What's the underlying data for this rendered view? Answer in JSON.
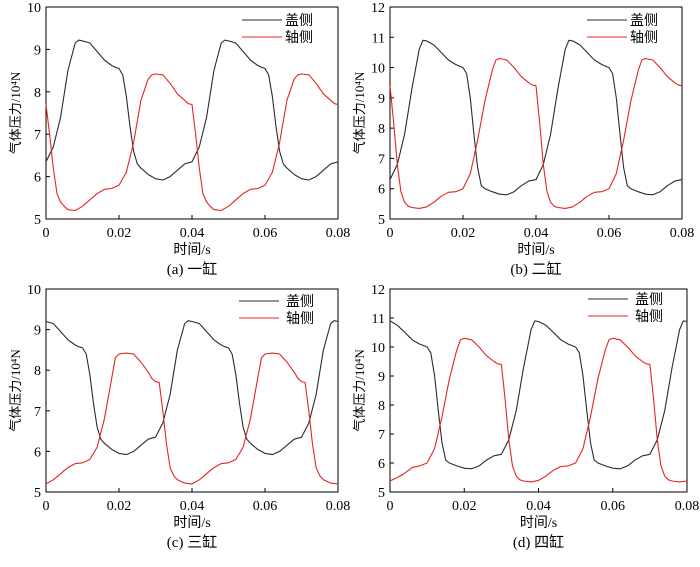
{
  "figure": {
    "legend_series": [
      "盖侧",
      "轴侧"
    ],
    "series_colors": [
      "#2b2b2b",
      "#e3251f"
    ]
  },
  "chart_data": [
    {
      "type": "line",
      "caption": "(a)  一缸",
      "xlabel": "时间/s",
      "ylabel": "气体压力/10⁴N",
      "xlim": [
        0,
        0.08
      ],
      "ylim": [
        5,
        10
      ],
      "xticks": [
        "0",
        "0.02",
        "0.04",
        "0.06",
        "0.08"
      ],
      "yticks": [
        "5",
        "6",
        "7",
        "8",
        "9",
        "10"
      ],
      "legend": "top-right",
      "grid": false,
      "series": [
        {
          "name": "盖侧",
          "color": "#2b2b2b",
          "x": [
            0,
            0.002,
            0.004,
            0.006,
            0.008,
            0.009,
            0.01,
            0.012,
            0.014,
            0.016,
            0.018,
            0.019,
            0.02,
            0.021,
            0.022,
            0.023,
            0.024,
            0.025,
            0.026,
            0.028,
            0.03,
            0.032,
            0.034,
            0.036,
            0.038,
            0.04,
            0.042,
            0.044,
            0.046,
            0.048,
            0.049,
            0.05,
            0.052,
            0.054,
            0.056,
            0.058,
            0.059,
            0.06,
            0.061,
            0.062,
            0.063,
            0.064,
            0.065,
            0.066,
            0.068,
            0.07,
            0.072,
            0.074,
            0.076,
            0.078,
            0.08
          ],
          "y": [
            6.35,
            6.7,
            7.4,
            8.5,
            9.15,
            9.22,
            9.2,
            9.15,
            8.95,
            8.75,
            8.62,
            8.58,
            8.55,
            8.4,
            7.9,
            7.2,
            6.6,
            6.3,
            6.2,
            6.05,
            5.95,
            5.92,
            6.0,
            6.15,
            6.3,
            6.35,
            6.7,
            7.4,
            8.5,
            9.15,
            9.22,
            9.2,
            9.15,
            8.95,
            8.75,
            8.62,
            8.58,
            8.55,
            8.4,
            7.9,
            7.2,
            6.6,
            6.3,
            6.2,
            6.05,
            5.95,
            5.92,
            6.0,
            6.15,
            6.3,
            6.35
          ]
        },
        {
          "name": "轴侧",
          "color": "#e3251f",
          "x": [
            0,
            0.001,
            0.002,
            0.003,
            0.004,
            0.005,
            0.006,
            0.008,
            0.01,
            0.012,
            0.014,
            0.016,
            0.018,
            0.02,
            0.022,
            0.024,
            0.026,
            0.028,
            0.029,
            0.03,
            0.032,
            0.034,
            0.036,
            0.038,
            0.039,
            0.04,
            0.041,
            0.042,
            0.043,
            0.044,
            0.045,
            0.046,
            0.048,
            0.05,
            0.052,
            0.054,
            0.056,
            0.058,
            0.06,
            0.062,
            0.064,
            0.066,
            0.068,
            0.069,
            0.07,
            0.072,
            0.074,
            0.076,
            0.078,
            0.079,
            0.08
          ],
          "y": [
            7.7,
            7.0,
            6.2,
            5.6,
            5.4,
            5.3,
            5.22,
            5.2,
            5.3,
            5.45,
            5.6,
            5.7,
            5.72,
            5.8,
            6.1,
            6.8,
            7.8,
            8.3,
            8.4,
            8.42,
            8.4,
            8.2,
            7.95,
            7.8,
            7.72,
            7.7,
            7.0,
            6.2,
            5.6,
            5.4,
            5.3,
            5.22,
            5.2,
            5.3,
            5.45,
            5.6,
            5.7,
            5.72,
            5.8,
            6.1,
            6.8,
            7.8,
            8.3,
            8.4,
            8.42,
            8.4,
            8.2,
            7.95,
            7.8,
            7.72,
            7.7
          ]
        }
      ]
    },
    {
      "type": "line",
      "caption": "(b)  二缸",
      "xlabel": "时间/s",
      "ylabel": "气体压力/10⁴N",
      "xlim": [
        0,
        0.08
      ],
      "ylim": [
        5,
        12
      ],
      "xticks": [
        "0",
        "0.02",
        "0.04",
        "0.06",
        "0.08"
      ],
      "yticks": [
        "5",
        "6",
        "7",
        "8",
        "9",
        "10",
        "11",
        "12"
      ],
      "legend": "top-right",
      "grid": false,
      "series": [
        {
          "name": "盖侧",
          "color": "#2b2b2b",
          "x": [
            0,
            0.002,
            0.004,
            0.006,
            0.008,
            0.009,
            0.01,
            0.012,
            0.014,
            0.016,
            0.018,
            0.019,
            0.02,
            0.021,
            0.022,
            0.023,
            0.024,
            0.025,
            0.026,
            0.028,
            0.03,
            0.032,
            0.034,
            0.036,
            0.038,
            0.04,
            0.042,
            0.044,
            0.046,
            0.048,
            0.049,
            0.05,
            0.052,
            0.054,
            0.056,
            0.058,
            0.059,
            0.06,
            0.061,
            0.062,
            0.063,
            0.064,
            0.065,
            0.066,
            0.068,
            0.07,
            0.072,
            0.074,
            0.076,
            0.078,
            0.08
          ],
          "y": [
            6.3,
            6.8,
            7.8,
            9.3,
            10.6,
            10.9,
            10.88,
            10.75,
            10.5,
            10.25,
            10.1,
            10.05,
            10.0,
            9.8,
            9.0,
            7.8,
            6.7,
            6.1,
            6.0,
            5.9,
            5.82,
            5.8,
            5.9,
            6.1,
            6.25,
            6.3,
            6.8,
            7.8,
            9.3,
            10.6,
            10.9,
            10.88,
            10.75,
            10.5,
            10.25,
            10.1,
            10.05,
            10.0,
            9.8,
            9.0,
            7.8,
            6.7,
            6.1,
            6.0,
            5.9,
            5.82,
            5.8,
            5.9,
            6.1,
            6.25,
            6.3
          ]
        },
        {
          "name": "轴侧",
          "color": "#e3251f",
          "x": [
            0,
            0.001,
            0.002,
            0.003,
            0.004,
            0.005,
            0.006,
            0.008,
            0.01,
            0.012,
            0.014,
            0.016,
            0.018,
            0.02,
            0.022,
            0.024,
            0.026,
            0.028,
            0.029,
            0.03,
            0.032,
            0.034,
            0.036,
            0.038,
            0.039,
            0.04,
            0.041,
            0.042,
            0.043,
            0.044,
            0.045,
            0.046,
            0.048,
            0.05,
            0.052,
            0.054,
            0.056,
            0.058,
            0.06,
            0.062,
            0.064,
            0.066,
            0.068,
            0.069,
            0.07,
            0.072,
            0.074,
            0.076,
            0.078,
            0.079,
            0.08
          ],
          "y": [
            9.4,
            8.2,
            6.8,
            5.9,
            5.55,
            5.42,
            5.38,
            5.35,
            5.4,
            5.55,
            5.75,
            5.88,
            5.9,
            6.0,
            6.5,
            7.6,
            8.9,
            9.9,
            10.25,
            10.3,
            10.25,
            10.0,
            9.7,
            9.5,
            9.42,
            9.4,
            8.2,
            6.8,
            5.9,
            5.55,
            5.42,
            5.38,
            5.35,
            5.4,
            5.55,
            5.75,
            5.88,
            5.9,
            6.0,
            6.5,
            7.6,
            8.9,
            9.9,
            10.25,
            10.3,
            10.25,
            10.0,
            9.7,
            9.5,
            9.42,
            9.4
          ]
        }
      ]
    },
    {
      "type": "line",
      "caption": "(c)  三缸",
      "xlabel": "时间/s",
      "ylabel": "气体压力/10⁴N",
      "xlim": [
        0,
        0.08
      ],
      "ylim": [
        5,
        10
      ],
      "xticks": [
        "0",
        "0.02",
        "0.04",
        "0.06",
        "0.08"
      ],
      "yticks": [
        "5",
        "6",
        "7",
        "8",
        "9",
        "10"
      ],
      "legend": "top-right",
      "grid": false,
      "series": [
        {
          "name": "盖侧",
          "color": "#2b2b2b",
          "x": [
            0,
            0.002,
            0.004,
            0.006,
            0.008,
            0.009,
            0.01,
            0.011,
            0.012,
            0.013,
            0.014,
            0.015,
            0.016,
            0.018,
            0.02,
            0.022,
            0.024,
            0.026,
            0.028,
            0.03,
            0.032,
            0.034,
            0.036,
            0.038,
            0.039,
            0.04,
            0.042,
            0.044,
            0.046,
            0.048,
            0.049,
            0.05,
            0.051,
            0.052,
            0.053,
            0.054,
            0.055,
            0.056,
            0.058,
            0.06,
            0.062,
            0.064,
            0.066,
            0.068,
            0.07,
            0.072,
            0.074,
            0.076,
            0.078,
            0.079,
            0.08
          ],
          "y": [
            9.2,
            9.15,
            8.95,
            8.75,
            8.62,
            8.58,
            8.55,
            8.4,
            7.9,
            7.2,
            6.6,
            6.3,
            6.2,
            6.05,
            5.95,
            5.92,
            6.0,
            6.15,
            6.3,
            6.35,
            6.7,
            7.4,
            8.5,
            9.15,
            9.22,
            9.2,
            9.15,
            8.95,
            8.75,
            8.62,
            8.58,
            8.55,
            8.4,
            7.9,
            7.2,
            6.6,
            6.3,
            6.2,
            6.05,
            5.95,
            5.92,
            6.0,
            6.15,
            6.3,
            6.35,
            6.7,
            7.4,
            8.5,
            9.15,
            9.22,
            9.2
          ]
        },
        {
          "name": "轴侧",
          "color": "#e3251f",
          "x": [
            0,
            0.002,
            0.004,
            0.006,
            0.008,
            0.01,
            0.012,
            0.014,
            0.016,
            0.018,
            0.019,
            0.02,
            0.022,
            0.024,
            0.026,
            0.028,
            0.029,
            0.03,
            0.031,
            0.032,
            0.033,
            0.034,
            0.035,
            0.036,
            0.038,
            0.04,
            0.042,
            0.044,
            0.046,
            0.048,
            0.05,
            0.052,
            0.054,
            0.056,
            0.058,
            0.059,
            0.06,
            0.062,
            0.064,
            0.066,
            0.068,
            0.069,
            0.07,
            0.071,
            0.072,
            0.073,
            0.074,
            0.075,
            0.076,
            0.078,
            0.08
          ],
          "y": [
            5.2,
            5.3,
            5.45,
            5.6,
            5.7,
            5.72,
            5.8,
            6.1,
            6.8,
            7.8,
            8.3,
            8.4,
            8.42,
            8.4,
            8.2,
            7.95,
            7.8,
            7.72,
            7.7,
            7.0,
            6.2,
            5.6,
            5.4,
            5.3,
            5.22,
            5.2,
            5.3,
            5.45,
            5.6,
            5.7,
            5.72,
            5.8,
            6.1,
            6.8,
            7.8,
            8.3,
            8.4,
            8.42,
            8.4,
            8.2,
            7.95,
            7.8,
            7.72,
            7.7,
            7.0,
            6.2,
            5.6,
            5.4,
            5.3,
            5.22,
            5.2
          ]
        }
      ]
    },
    {
      "type": "line",
      "caption": "(d)  四缸",
      "xlabel": "时间/s",
      "ylabel": "气体压力/10⁴N",
      "xlim": [
        0,
        0.08
      ],
      "ylim": [
        5,
        12
      ],
      "xticks": [
        "0",
        "0.02",
        "0.04",
        "0.06",
        "0.08"
      ],
      "yticks": [
        "5",
        "6",
        "7",
        "8",
        "9",
        "10",
        "11",
        "12"
      ],
      "legend": "top-right",
      "grid": false,
      "series": [
        {
          "name": "盖侧",
          "color": "#2b2b2b",
          "x": [
            0,
            0.002,
            0.004,
            0.006,
            0.008,
            0.009,
            0.01,
            0.011,
            0.012,
            0.013,
            0.014,
            0.015,
            0.016,
            0.018,
            0.02,
            0.022,
            0.024,
            0.026,
            0.028,
            0.03,
            0.032,
            0.034,
            0.036,
            0.038,
            0.039,
            0.04,
            0.042,
            0.044,
            0.046,
            0.048,
            0.049,
            0.05,
            0.051,
            0.052,
            0.053,
            0.054,
            0.055,
            0.056,
            0.058,
            0.06,
            0.062,
            0.064,
            0.066,
            0.068,
            0.07,
            0.072,
            0.074,
            0.076,
            0.078,
            0.079,
            0.08
          ],
          "y": [
            10.9,
            10.75,
            10.5,
            10.25,
            10.1,
            10.05,
            10.0,
            9.8,
            9.0,
            7.8,
            6.7,
            6.1,
            6.0,
            5.9,
            5.82,
            5.8,
            5.9,
            6.1,
            6.25,
            6.3,
            6.8,
            7.8,
            9.3,
            10.6,
            10.9,
            10.88,
            10.75,
            10.5,
            10.25,
            10.1,
            10.05,
            10.0,
            9.8,
            9.0,
            7.8,
            6.7,
            6.1,
            6.0,
            5.9,
            5.82,
            5.8,
            5.9,
            6.1,
            6.25,
            6.3,
            6.8,
            7.8,
            9.3,
            10.6,
            10.9,
            10.88
          ]
        },
        {
          "name": "轴侧",
          "color": "#e3251f",
          "x": [
            0,
            0.002,
            0.004,
            0.006,
            0.008,
            0.01,
            0.012,
            0.014,
            0.016,
            0.018,
            0.019,
            0.02,
            0.022,
            0.024,
            0.026,
            0.028,
            0.029,
            0.03,
            0.031,
            0.032,
            0.033,
            0.034,
            0.035,
            0.036,
            0.038,
            0.04,
            0.042,
            0.044,
            0.046,
            0.048,
            0.05,
            0.052,
            0.054,
            0.056,
            0.058,
            0.059,
            0.06,
            0.062,
            0.064,
            0.066,
            0.068,
            0.069,
            0.07,
            0.071,
            0.072,
            0.073,
            0.074,
            0.075,
            0.076,
            0.078,
            0.08
          ],
          "y": [
            5.38,
            5.5,
            5.65,
            5.85,
            5.9,
            6.0,
            6.5,
            7.6,
            8.9,
            9.9,
            10.25,
            10.3,
            10.25,
            10.0,
            9.7,
            9.5,
            9.42,
            9.4,
            8.2,
            6.8,
            5.9,
            5.55,
            5.42,
            5.38,
            5.35,
            5.4,
            5.55,
            5.75,
            5.88,
            5.9,
            6.0,
            6.5,
            7.6,
            8.9,
            9.9,
            10.25,
            10.3,
            10.25,
            10.0,
            9.7,
            9.5,
            9.42,
            9.4,
            8.2,
            6.8,
            5.9,
            5.55,
            5.42,
            5.38,
            5.35,
            5.38
          ]
        }
      ]
    }
  ]
}
